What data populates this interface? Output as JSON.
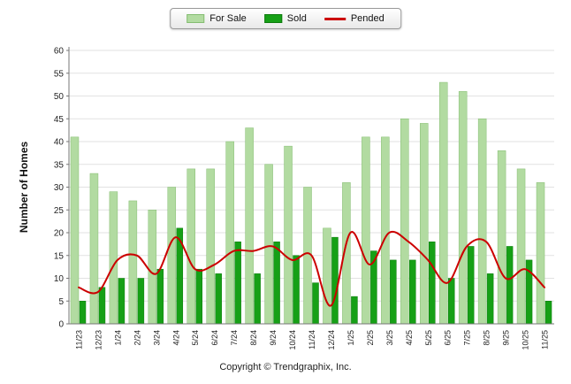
{
  "legend": {
    "for_sale_label": "For Sale",
    "sold_label": "Sold",
    "pended_label": "Pended"
  },
  "axis": {
    "y_title": "Number of Homes"
  },
  "footer": {
    "copyright": "Copyright © Trendgraphix, Inc."
  },
  "colors": {
    "for_sale": "#b2dba1",
    "for_sale_border": "#85bd72",
    "sold": "#16a016",
    "sold_border": "#0c7a0c",
    "pended": "#cc0000",
    "grid": "#e2e2e2",
    "axis": "#777777",
    "tick_text": "#222222"
  },
  "chart_data": {
    "type": "bar",
    "title": "",
    "xlabel": "",
    "ylabel": "Number of Homes",
    "ylim": [
      0,
      60
    ],
    "ytick_step": 5,
    "yticks": [
      0,
      5,
      10,
      15,
      20,
      25,
      30,
      35,
      40,
      45,
      50,
      55,
      60
    ],
    "grid": true,
    "legend_position": "top",
    "categories": [
      "11/23",
      "12/23",
      "1/24",
      "2/24",
      "3/24",
      "4/24",
      "5/24",
      "6/24",
      "7/24",
      "8/24",
      "9/24",
      "10/24",
      "11/24",
      "12/24",
      "1/25",
      "2/25",
      "3/25",
      "4/25",
      "5/25",
      "6/25",
      "7/25",
      "8/25",
      "9/25",
      "10/25",
      "11/25"
    ],
    "series": [
      {
        "name": "For Sale",
        "type": "bar",
        "color": "#b2dba1",
        "values": [
          41,
          33,
          29,
          27,
          25,
          30,
          34,
          34,
          40,
          43,
          35,
          39,
          30,
          21,
          31,
          41,
          41,
          45,
          44,
          53,
          51,
          45,
          38,
          34,
          31
        ]
      },
      {
        "name": "Sold",
        "type": "bar",
        "color": "#16a016",
        "values": [
          5,
          8,
          10,
          10,
          12,
          21,
          12,
          11,
          18,
          11,
          18,
          15,
          9,
          19,
          6,
          16,
          14,
          14,
          18,
          10,
          17,
          11,
          17,
          14,
          5
        ]
      },
      {
        "name": "Pended",
        "type": "line",
        "color": "#cc0000",
        "values": [
          8,
          7,
          14,
          15,
          11,
          19,
          12,
          13,
          16,
          16,
          17,
          14,
          15,
          4,
          20,
          13,
          20,
          18,
          14,
          9,
          17,
          18,
          10,
          12,
          8
        ]
      }
    ]
  }
}
